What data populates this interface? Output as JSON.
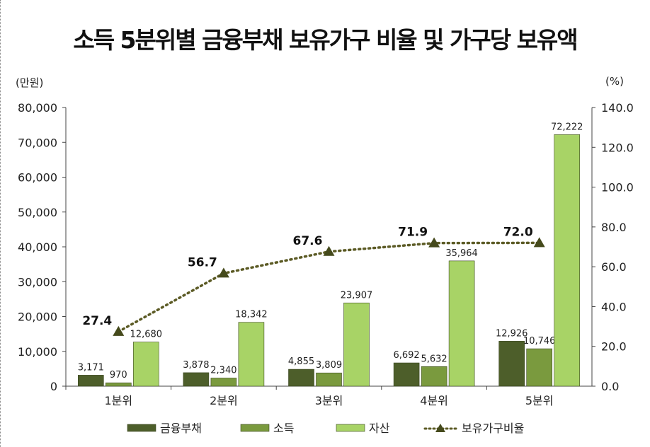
{
  "chart_data": {
    "type": "bar",
    "title": "소득 5분위별 금융부채 보유가구 비율 및    가구당 보유액",
    "ylabel_left": "(만원)",
    "ylabel_right": "(%)",
    "categories": [
      "1분위",
      "2분위",
      "3분위",
      "4분위",
      "5분위"
    ],
    "ylim": [
      0,
      80000
    ],
    "y2lim": [
      0,
      140
    ],
    "yticks": [
      "0",
      "10,000",
      "20,000",
      "30,000",
      "40,000",
      "50,000",
      "60,000",
      "70,000",
      "80,000"
    ],
    "y2ticks": [
      "0.0",
      "20.0",
      "40.0",
      "60.0",
      "80.0",
      "100.0",
      "120.0",
      "140.0"
    ],
    "series": [
      {
        "name": "금융부채",
        "type": "bar",
        "color": "#4d5e2a",
        "values": [
          3171,
          3878,
          4855,
          6692,
          12926
        ],
        "labels": [
          "3,171",
          "3,878",
          "4,855",
          "6,692",
          "12,926"
        ]
      },
      {
        "name": "소득",
        "type": "bar",
        "color": "#7a9a3e",
        "values": [
          970,
          2340,
          3809,
          5632,
          10746
        ],
        "labels": [
          "970",
          "2,340",
          "3,809",
          "5,632",
          "10,746"
        ]
      },
      {
        "name": "자산",
        "type": "bar",
        "color": "#a8d366",
        "values": [
          12680,
          18342,
          23907,
          35964,
          72222
        ],
        "labels": [
          "12,680",
          "18,342",
          "23,907",
          "35,964",
          "72,222"
        ]
      },
      {
        "name": "보유가구비율",
        "type": "line",
        "axis": "right",
        "color": "#5b5a24",
        "values": [
          27.4,
          56.7,
          67.6,
          71.9,
          72.0
        ],
        "labels": [
          "27.4",
          "56.7",
          "67.6",
          "71.9",
          "72.0"
        ]
      }
    ],
    "grid": false,
    "legend_position": "bottom"
  }
}
